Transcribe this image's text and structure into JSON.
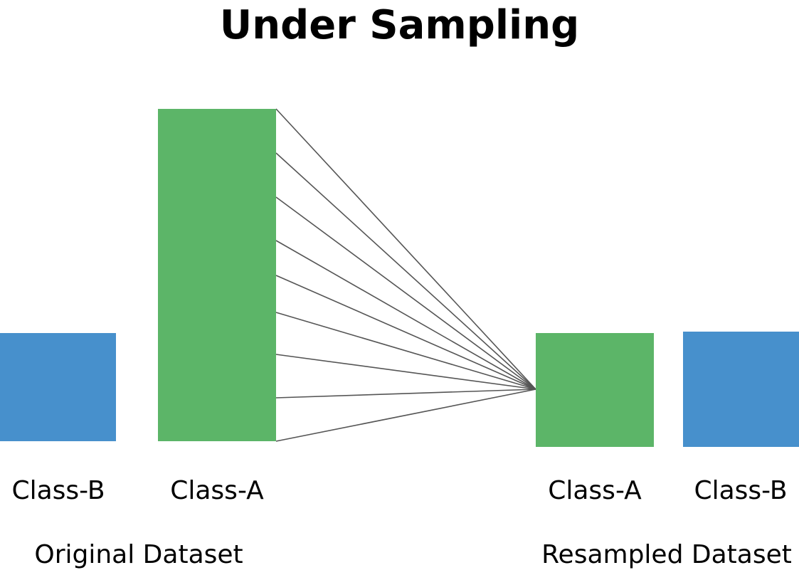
{
  "title": "Under Sampling",
  "colors": {
    "class_a": "#5cb568",
    "class_b": "#4790cc",
    "connector": "#555555"
  },
  "original": {
    "caption": "Original Dataset",
    "class_b_label": "Class-B",
    "class_a_label": "Class-A"
  },
  "resampled": {
    "caption": "Resampled Dataset",
    "class_a_label": "Class-A",
    "class_b_label": "Class-B"
  },
  "connector_lines": 9
}
